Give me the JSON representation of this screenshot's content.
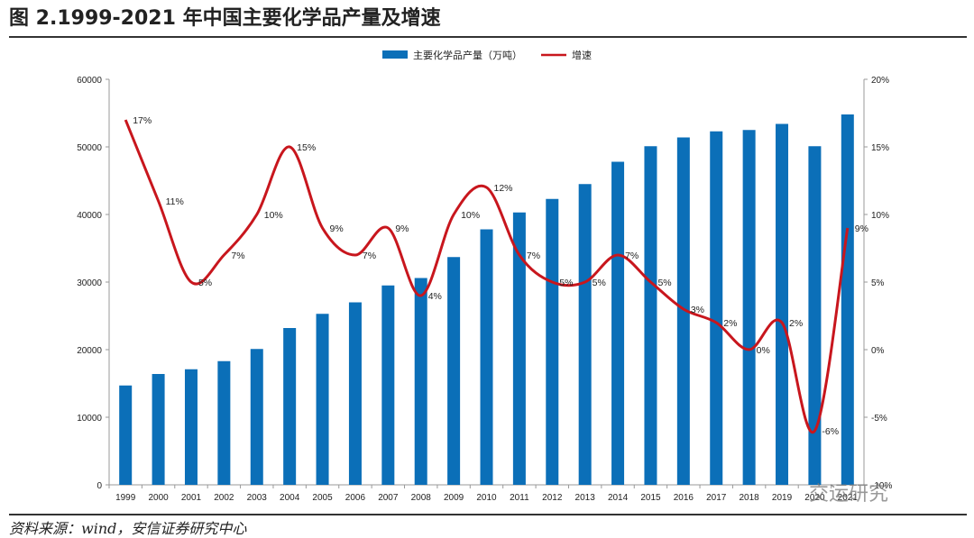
{
  "header": {
    "title": "图 2.1999-2021 年中国主要化学品产量及增速"
  },
  "footer": {
    "source": "资料来源：wind，安信证券研究中心",
    "watermark": "交运研究"
  },
  "chart_data": {
    "type": "bar",
    "title": "",
    "categories": [
      "1999",
      "2000",
      "2001",
      "2002",
      "2003",
      "2004",
      "2005",
      "2006",
      "2007",
      "2008",
      "2009",
      "2010",
      "2011",
      "2012",
      "2013",
      "2014",
      "2015",
      "2016",
      "2017",
      "2018",
      "2019",
      "2020",
      "2021"
    ],
    "series": [
      {
        "name": "主要化学品产量（万吨）",
        "type": "bar",
        "axis": "left",
        "color": "#0b6fb8",
        "values": [
          14700,
          16400,
          17100,
          18300,
          20100,
          23200,
          25300,
          27000,
          29500,
          30600,
          33700,
          37800,
          40300,
          42300,
          44500,
          47800,
          50100,
          51400,
          52300,
          52500,
          53400,
          50100,
          54800
        ]
      },
      {
        "name": "增速",
        "type": "line",
        "axis": "right",
        "color": "#c8161d",
        "values": [
          0.17,
          0.11,
          0.05,
          0.07,
          0.1,
          0.15,
          0.09,
          0.07,
          0.09,
          0.04,
          0.1,
          0.12,
          0.07,
          0.05,
          0.05,
          0.07,
          0.05,
          0.03,
          0.02,
          0.0,
          0.02,
          -0.06,
          0.09
        ],
        "labels": [
          "17%",
          "11%",
          "5%",
          "7%",
          "10%",
          "15%",
          "9%",
          "7%",
          "9%",
          "4%",
          "10%",
          "12%",
          "7%",
          "5%",
          "5%",
          "7%",
          "5%",
          "3%",
          "2%",
          "0%",
          "2%",
          "-6%",
          "9%"
        ]
      }
    ],
    "y_left": {
      "range": [
        0,
        60000
      ],
      "ticks": [
        "0",
        "10000",
        "20000",
        "30000",
        "40000",
        "50000",
        "60000"
      ]
    },
    "y_right": {
      "range": [
        -0.1,
        0.2
      ],
      "ticks": [
        "-10%",
        "-5%",
        "0%",
        "5%",
        "10%",
        "15%",
        "20%"
      ]
    },
    "legend": {
      "position": "top-center"
    },
    "grid": false
  }
}
